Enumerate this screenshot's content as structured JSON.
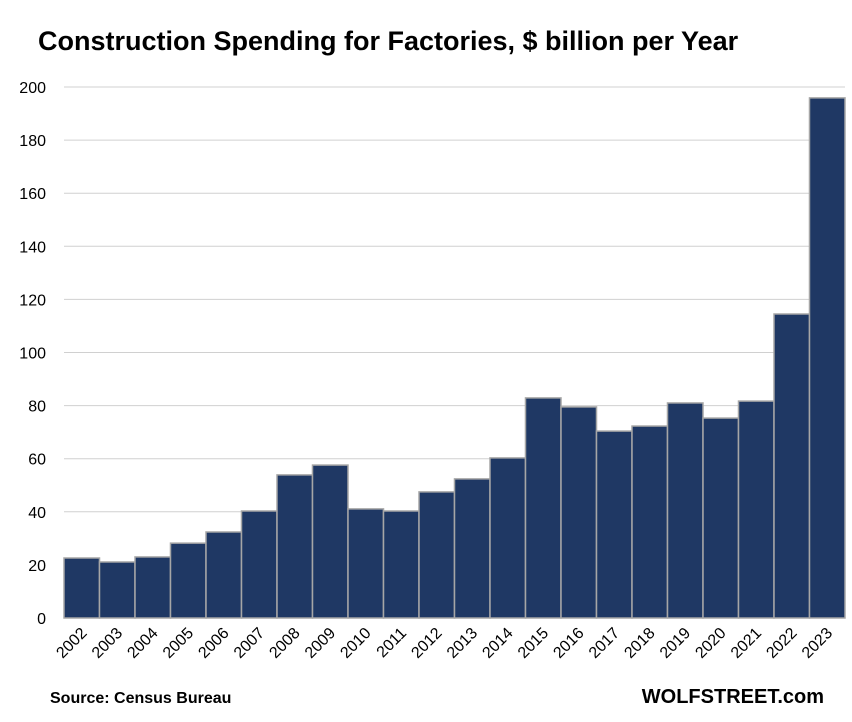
{
  "chart_data": {
    "type": "bar",
    "title": "Construction Spending for Factories, $ billion per Year",
    "categories": [
      "2002",
      "2003",
      "2004",
      "2005",
      "2006",
      "2007",
      "2008",
      "2009",
      "2010",
      "2011",
      "2012",
      "2013",
      "2014",
      "2015",
      "2016",
      "2017",
      "2018",
      "2019",
      "2020",
      "2021",
      "2022",
      "2023"
    ],
    "values": [
      22.6,
      21.1,
      23.0,
      28.2,
      32.4,
      40.3,
      53.9,
      57.6,
      41.1,
      40.3,
      47.5,
      52.4,
      60.3,
      82.9,
      79.5,
      70.4,
      72.3,
      81.0,
      75.3,
      81.7,
      114.5,
      195.9
    ],
    "ylim": [
      0,
      200
    ],
    "yticks": [
      0,
      20,
      40,
      60,
      80,
      100,
      120,
      140,
      160,
      180,
      200
    ],
    "grid": true,
    "bar_color": "#1F3864",
    "bar_edge_color": "#A6A6A6",
    "grid_color": "#D0D0D0"
  },
  "source": "Source: Census Bureau",
  "brand": "WOLFSTREET.com"
}
